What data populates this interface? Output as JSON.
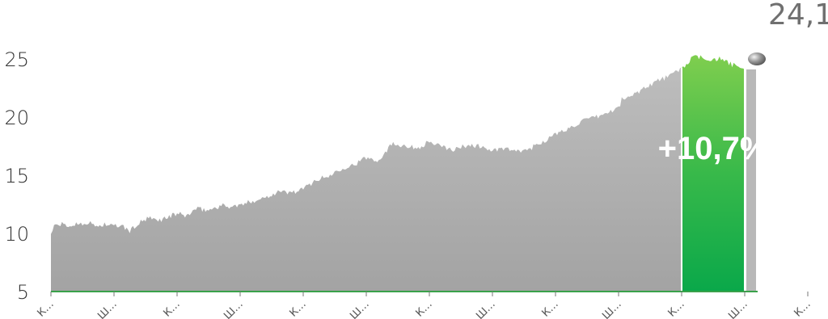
{
  "chart_data": {
    "type": "area",
    "title": "",
    "xlabel": "",
    "ylabel": "",
    "ylim": [
      5,
      27.5
    ],
    "y_ticks": [
      "5",
      "10",
      "15",
      "20",
      "25"
    ],
    "x_ticks": [
      "К…",
      "Ш…",
      "К…",
      "Ш…",
      "К…",
      "Ш…",
      "К…",
      "Ш…",
      "К…",
      "Ш…",
      "К…",
      "Ш…",
      "К…"
    ],
    "grid": false,
    "last_value_label": "24,1",
    "change_label": "+10,7%",
    "highlight_start_tick": 10,
    "highlight_end_tick": 12,
    "series": [
      {
        "points": [
          [
            0,
            10.0
          ],
          [
            0.05,
            10.6
          ],
          [
            0.15,
            10.8
          ],
          [
            0.3,
            10.6
          ],
          [
            0.45,
            10.9
          ],
          [
            0.6,
            10.9
          ],
          [
            0.75,
            10.6
          ],
          [
            0.85,
            10.8
          ],
          [
            1.0,
            10.6
          ],
          [
            1.1,
            10.7
          ],
          [
            1.25,
            10.2
          ],
          [
            1.4,
            10.9
          ],
          [
            1.55,
            11.3
          ],
          [
            1.7,
            11.1
          ],
          [
            1.9,
            11.5
          ],
          [
            2.0,
            11.7
          ],
          [
            2.15,
            11.5
          ],
          [
            2.3,
            12.1
          ],
          [
            2.5,
            12.0
          ],
          [
            2.7,
            12.4
          ],
          [
            2.85,
            12.3
          ],
          [
            3.0,
            12.4
          ],
          [
            3.2,
            12.8
          ],
          [
            3.4,
            13.1
          ],
          [
            3.6,
            13.6
          ],
          [
            3.8,
            13.5
          ],
          [
            4.0,
            13.8
          ],
          [
            4.2,
            14.6
          ],
          [
            4.4,
            14.9
          ],
          [
            4.6,
            15.6
          ],
          [
            4.8,
            15.9
          ],
          [
            5.0,
            16.5
          ],
          [
            5.2,
            16.3
          ],
          [
            5.4,
            17.7
          ],
          [
            5.6,
            17.6
          ],
          [
            5.8,
            17.3
          ],
          [
            6.0,
            17.9
          ],
          [
            6.2,
            17.4
          ],
          [
            6.4,
            17.2
          ],
          [
            6.6,
            17.6
          ],
          [
            6.8,
            17.5
          ],
          [
            7.0,
            17.1
          ],
          [
            7.2,
            17.3
          ],
          [
            7.4,
            17.0
          ],
          [
            7.6,
            17.3
          ],
          [
            7.8,
            17.9
          ],
          [
            8.0,
            18.5
          ],
          [
            8.2,
            19.0
          ],
          [
            8.4,
            19.6
          ],
          [
            8.6,
            19.9
          ],
          [
            8.8,
            20.3
          ],
          [
            9.0,
            20.8
          ],
          [
            9.05,
            21.5
          ],
          [
            9.2,
            21.8
          ],
          [
            9.4,
            22.5
          ],
          [
            9.6,
            23.1
          ],
          [
            9.8,
            23.5
          ],
          [
            10.0,
            24.2
          ],
          [
            10.2,
            25.2
          ],
          [
            10.4,
            25.0
          ],
          [
            10.6,
            25.0
          ],
          [
            10.8,
            24.5
          ],
          [
            11.0,
            24.1
          ]
        ]
      }
    ]
  }
}
